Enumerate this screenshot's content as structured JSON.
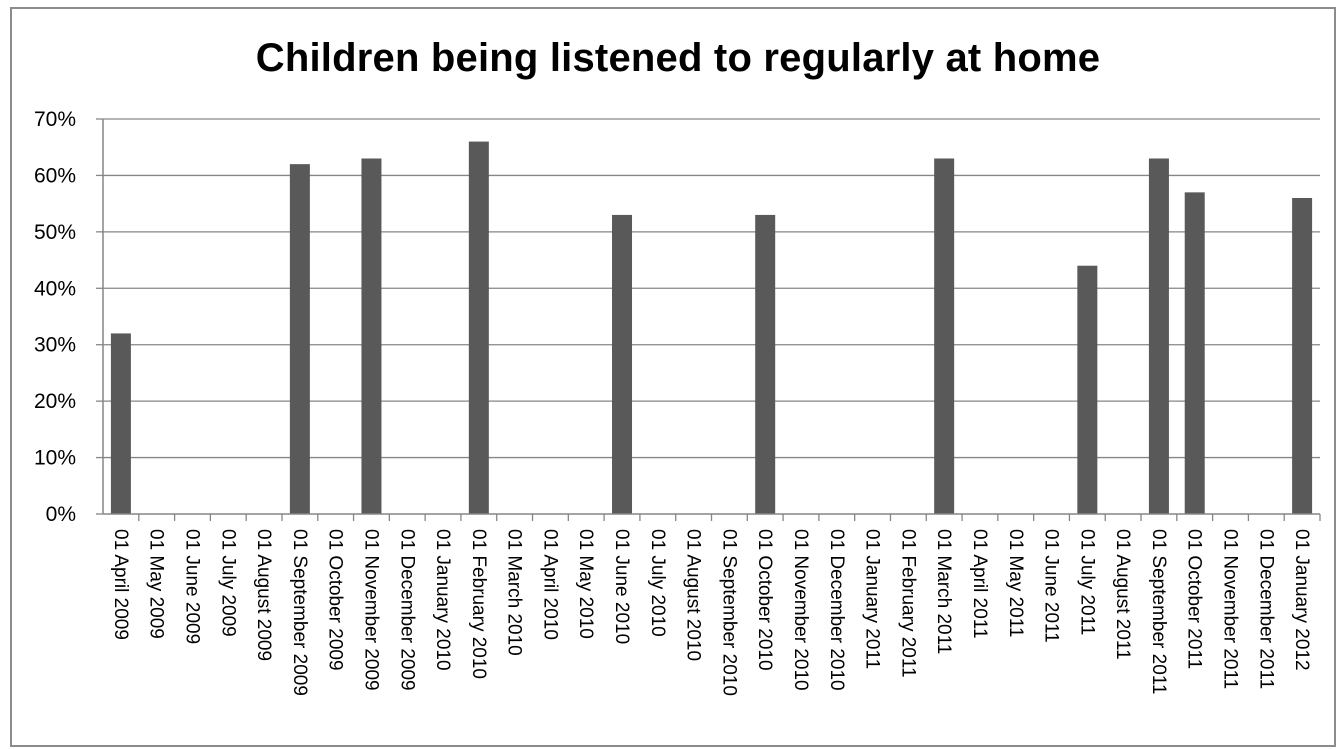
{
  "chart_data": {
    "type": "bar",
    "title": "Children being listened to regularly at home",
    "xlabel": "",
    "ylabel": "",
    "ylim": [
      0,
      0.7
    ],
    "yticks": [
      "0%",
      "10%",
      "20%",
      "30%",
      "40%",
      "50%",
      "60%",
      "70%"
    ],
    "grid": true,
    "legend": "none",
    "bar_color": "#595959",
    "categories": [
      "01 April 2009",
      "01 May 2009",
      "01 June 2009",
      "01 July 2009",
      "01 August 2009",
      "01 September 2009",
      "01 October 2009",
      "01 November 2009",
      "01 December 2009",
      "01 January 2010",
      "01 February 2010",
      "01 March 2010",
      "01 April 2010",
      "01 May 2010",
      "01 June 2010",
      "01 July 2010",
      "01 August 2010",
      "01 September 2010",
      "01 October 2010",
      "01 November 2010",
      "01 December 2010",
      "01 January 2011",
      "01 February 2011",
      "01 March 2011",
      "01 April 2011",
      "01 May 2011",
      "01 June 2011",
      "01 July 2011",
      "01 August 2011",
      "01 September 2011",
      "01 October 2011",
      "01 November 2011",
      "01 December 2011",
      "01 January 2012"
    ],
    "values": [
      0.32,
      null,
      null,
      null,
      null,
      0.62,
      null,
      0.63,
      null,
      null,
      0.66,
      null,
      null,
      null,
      0.53,
      null,
      null,
      null,
      0.53,
      null,
      null,
      null,
      null,
      0.63,
      null,
      null,
      null,
      0.44,
      null,
      0.63,
      0.57,
      null,
      null,
      0.56
    ]
  }
}
